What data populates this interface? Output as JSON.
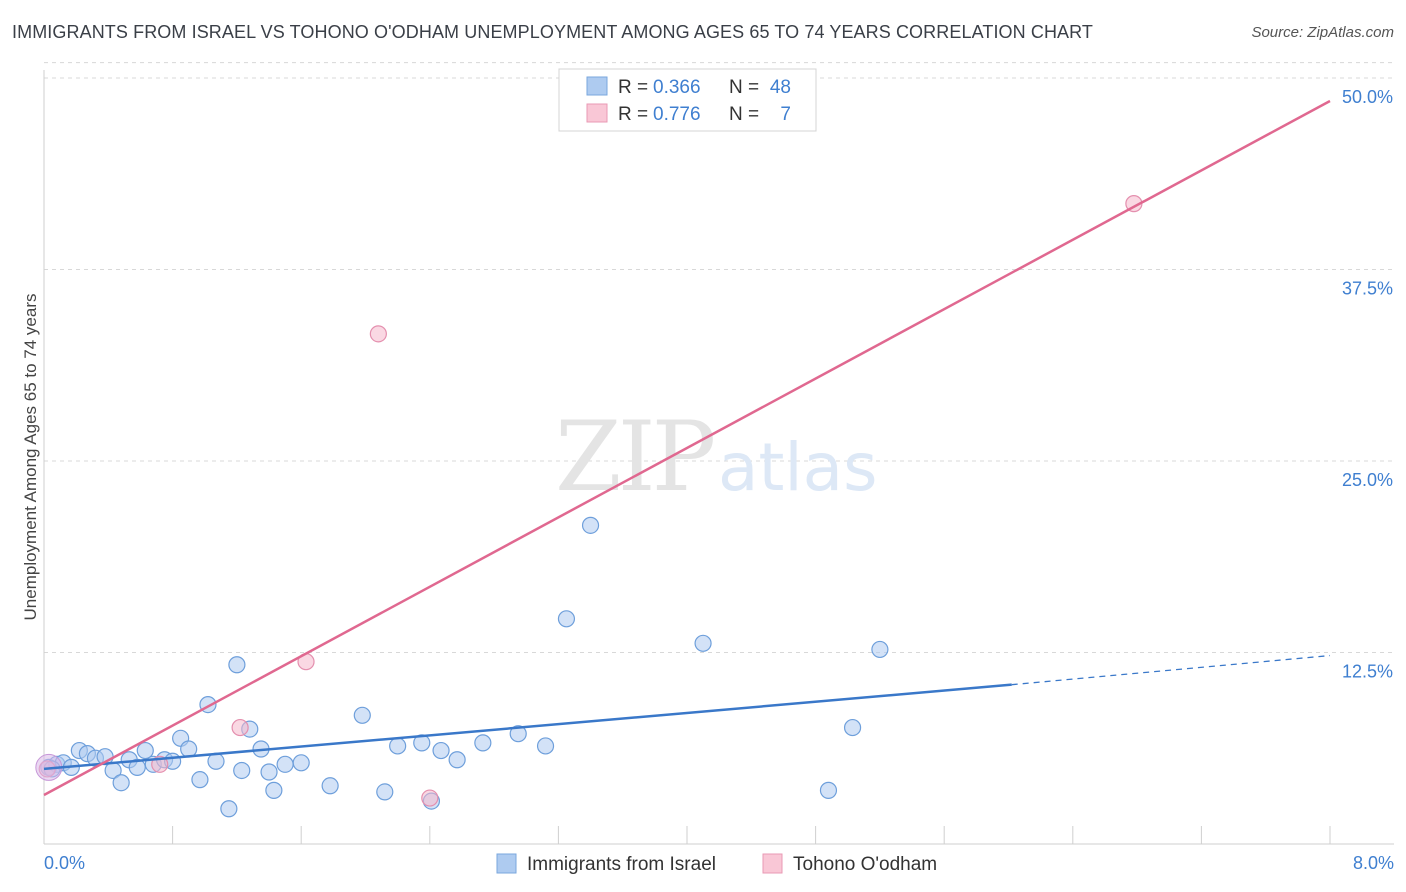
{
  "header": {
    "title": "IMMIGRANTS FROM ISRAEL VS TOHONO O'ODHAM UNEMPLOYMENT AMONG AGES 65 TO 74 YEARS CORRELATION CHART",
    "source": "Source: ZipAtlas.com"
  },
  "watermark": {
    "zip": "ZIP",
    "atlas": "atlas"
  },
  "colors": {
    "blue": "#3a78c9",
    "blue_fill": "#aecbf0",
    "pink": "#e06890",
    "pink_fill": "#f5b8cc",
    "grid": "#d8d8d8",
    "tick_text": "#3f7fd0"
  },
  "legend_top": {
    "rows": [
      {
        "r_label": "R =",
        "r_value": "0.366",
        "n_label": "N =",
        "n_value": "48",
        "series": "blue"
      },
      {
        "r_label": "R =",
        "r_value": "0.776",
        "n_label": "N =",
        "n_value": "7",
        "series": "pink"
      }
    ]
  },
  "chart_data": {
    "type": "scatter",
    "title": "IMMIGRANTS FROM ISRAEL VS TOHONO O'ODHAM UNEMPLOYMENT AMONG AGES 65 TO 74 YEARS CORRELATION CHART",
    "xlabel": "",
    "ylabel": "Unemployment Among Ages 65 to 74 years",
    "xlim": [
      0,
      8
    ],
    "ylim": [
      0,
      52
    ],
    "x_tick_labels": {
      "min": "0.0%",
      "max": "8.0%"
    },
    "y_ticks": [
      {
        "value": 12.5,
        "label": "12.5%"
      },
      {
        "value": 25.0,
        "label": "25.0%"
      },
      {
        "value": 37.5,
        "label": "37.5%"
      },
      {
        "value": 50.0,
        "label": "50.0%"
      }
    ],
    "legend": [
      "Immigrants from Israel",
      "Tohono O'odham"
    ],
    "series": [
      {
        "name": "Immigrants from Israel",
        "color": "blue",
        "points": [
          [
            0.03,
            5.0
          ],
          [
            0.08,
            5.2
          ],
          [
            0.12,
            5.3
          ],
          [
            0.17,
            5.0
          ],
          [
            0.22,
            6.1
          ],
          [
            0.27,
            5.9
          ],
          [
            0.32,
            5.6
          ],
          [
            0.38,
            5.7
          ],
          [
            0.43,
            4.8
          ],
          [
            0.48,
            4.0
          ],
          [
            0.53,
            5.5
          ],
          [
            0.58,
            5.0
          ],
          [
            0.63,
            6.1
          ],
          [
            0.68,
            5.2
          ],
          [
            0.75,
            5.5
          ],
          [
            0.8,
            5.4
          ],
          [
            0.85,
            6.9
          ],
          [
            0.9,
            6.2
          ],
          [
            0.97,
            4.2
          ],
          [
            1.02,
            9.1
          ],
          [
            1.07,
            5.4
          ],
          [
            1.15,
            2.3
          ],
          [
            1.2,
            11.7
          ],
          [
            1.23,
            4.8
          ],
          [
            1.28,
            7.5
          ],
          [
            1.35,
            6.2
          ],
          [
            1.4,
            4.7
          ],
          [
            1.43,
            3.5
          ],
          [
            1.5,
            5.2
          ],
          [
            1.6,
            5.3
          ],
          [
            1.78,
            3.8
          ],
          [
            1.98,
            8.4
          ],
          [
            2.12,
            3.4
          ],
          [
            2.2,
            6.4
          ],
          [
            2.35,
            6.6
          ],
          [
            2.47,
            6.1
          ],
          [
            2.57,
            5.5
          ],
          [
            2.73,
            6.6
          ],
          [
            2.95,
            7.2
          ],
          [
            3.12,
            6.4
          ],
          [
            3.25,
            14.7
          ],
          [
            3.4,
            20.8
          ],
          [
            2.41,
            2.8
          ],
          [
            4.1,
            13.1
          ],
          [
            4.88,
            3.5
          ],
          [
            5.03,
            7.6
          ],
          [
            5.2,
            12.7
          ],
          [
            0.05,
            4.9
          ]
        ],
        "trend": {
          "x0": 0.0,
          "y0": 4.9,
          "x1": 6.02,
          "y1": 10.4,
          "x_dash_end": 8.0,
          "y_dash_end": 12.3
        }
      },
      {
        "name": "Tohono O'odham",
        "color": "pink",
        "points": [
          [
            0.02,
            4.9
          ],
          [
            0.72,
            5.2
          ],
          [
            1.22,
            7.6
          ],
          [
            1.63,
            11.9
          ],
          [
            2.08,
            33.3
          ],
          [
            2.4,
            3.0
          ],
          [
            6.78,
            41.8
          ]
        ],
        "trend": {
          "x0": 0.0,
          "y0": 3.2,
          "x1": 8.0,
          "y1": 48.5
        }
      }
    ]
  }
}
